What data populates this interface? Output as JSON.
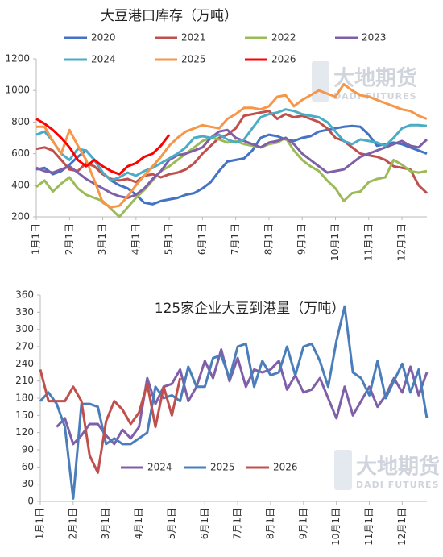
{
  "chart_data": [
    {
      "type": "line",
      "title": "大豆港口库存（万吨）",
      "watermark": {
        "text": "大地期货",
        "subtext": "DADI FUTURES"
      },
      "categories": [
        "1月1日",
        null,
        null,
        null,
        "2月1日",
        null,
        null,
        null,
        "3月1日",
        null,
        null,
        null,
        "4月1日",
        null,
        null,
        null,
        "5月1日",
        null,
        null,
        null,
        "6月1日",
        null,
        null,
        null,
        "7月1日",
        null,
        null,
        null,
        "8月1日",
        null,
        null,
        null,
        "9月1日",
        null,
        null,
        null,
        "10月1日",
        null,
        null,
        null,
        "11月1日",
        null,
        null,
        null,
        "12月1日",
        null,
        null,
        null
      ],
      "ylim": [
        200,
        1200
      ],
      "yticks": [
        200,
        400,
        600,
        800,
        1000,
        1200
      ],
      "grid": false,
      "series": [
        {
          "name": "2020",
          "color": "#4472c4",
          "values": [
            500,
            510,
            470,
            490,
            530,
            580,
            620,
            560,
            480,
            430,
            400,
            380,
            340,
            290,
            280,
            300,
            310,
            320,
            340,
            350,
            380,
            420,
            490,
            550,
            560,
            570,
            620,
            700,
            720,
            710,
            690,
            680,
            700,
            710,
            740,
            750,
            760,
            770,
            775,
            770,
            720,
            650,
            660,
            670,
            660,
            640,
            620,
            600
          ]
        },
        {
          "name": "2021",
          "color": "#c0504d",
          "values": [
            630,
            640,
            620,
            560,
            500,
            490,
            540,
            520,
            470,
            440,
            430,
            440,
            420,
            460,
            470,
            450,
            470,
            480,
            500,
            540,
            600,
            650,
            700,
            720,
            760,
            840,
            850,
            860,
            870,
            820,
            850,
            830,
            840,
            820,
            800,
            760,
            700,
            680,
            640,
            600,
            590,
            580,
            560,
            520,
            510,
            500,
            400,
            350
          ]
        },
        {
          "name": "2022",
          "color": "#9bbb59",
          "values": [
            390,
            430,
            360,
            410,
            450,
            380,
            340,
            320,
            300,
            250,
            200,
            260,
            320,
            370,
            430,
            490,
            520,
            560,
            600,
            640,
            680,
            700,
            690,
            670,
            680,
            660,
            650,
            640,
            660,
            670,
            700,
            620,
            560,
            520,
            490,
            430,
            380,
            300,
            350,
            360,
            420,
            440,
            450,
            560,
            530,
            490,
            480,
            490
          ]
        },
        {
          "name": "2023",
          "color": "#7f5fa8",
          "values": [
            510,
            490,
            480,
            500,
            520,
            480,
            440,
            410,
            380,
            350,
            330,
            320,
            340,
            380,
            440,
            490,
            560,
            590,
            600,
            620,
            640,
            700,
            740,
            750,
            700,
            680,
            660,
            640,
            670,
            680,
            700,
            660,
            600,
            560,
            520,
            480,
            490,
            500,
            540,
            580,
            600,
            620,
            640,
            660,
            680,
            650,
            640,
            690
          ]
        },
        {
          "name": "2024",
          "color": "#4bacc6",
          "values": [
            720,
            740,
            680,
            600,
            560,
            630,
            620,
            560,
            480,
            430,
            450,
            480,
            460,
            490,
            510,
            540,
            570,
            600,
            640,
            700,
            710,
            700,
            720,
            690,
            670,
            690,
            760,
            830,
            850,
            860,
            880,
            870,
            850,
            840,
            830,
            800,
            740,
            680,
            660,
            690,
            680,
            670,
            650,
            700,
            760,
            780,
            780,
            775
          ]
        },
        {
          "name": "2025",
          "color": "#f79646",
          "values": [
            770,
            770,
            680,
            600,
            750,
            650,
            560,
            430,
            290,
            260,
            270,
            330,
            400,
            460,
            520,
            580,
            650,
            700,
            740,
            760,
            780,
            770,
            760,
            820,
            850,
            890,
            890,
            880,
            900,
            960,
            970,
            900,
            940,
            970,
            1000,
            980,
            960,
            1040,
            1000,
            970,
            960,
            940,
            920,
            900,
            880,
            870,
            840,
            820
          ]
        },
        {
          "name": "2026",
          "color": "#ff0000",
          "values": [
            820,
            790,
            750,
            700,
            640,
            560,
            520,
            560,
            520,
            490,
            470,
            520,
            540,
            580,
            600,
            650,
            720,
            null,
            null,
            null,
            null,
            null,
            null,
            null,
            null,
            null,
            null,
            null,
            null,
            null,
            null,
            null,
            null,
            null,
            null,
            null,
            null,
            null,
            null,
            null,
            null,
            null,
            null,
            null,
            null,
            null,
            null,
            null
          ]
        }
      ]
    },
    {
      "type": "line",
      "title": "125家企业大豆到港量（万吨）",
      "watermark": {
        "text": "大地期货",
        "subtext": "DADI FUTURES"
      },
      "categories": [
        "1月1日",
        null,
        null,
        null,
        "2月1日",
        null,
        null,
        null,
        "3月1日",
        null,
        null,
        null,
        "4月1日",
        null,
        null,
        null,
        "5月1日",
        null,
        null,
        null,
        "6月1日",
        null,
        null,
        null,
        "7月1日",
        null,
        null,
        null,
        "8月1日",
        null,
        null,
        null,
        "9月1日",
        null,
        null,
        null,
        "10月1日",
        null,
        null,
        null,
        "11月1日",
        null,
        null,
        null,
        "12月1日",
        null,
        null,
        null
      ],
      "ylim": [
        0,
        360
      ],
      "yticks": [
        0,
        30,
        60,
        90,
        120,
        150,
        180,
        210,
        240,
        270,
        300,
        330,
        360
      ],
      "grid": false,
      "series": [
        {
          "name": "2024",
          "color": "#7f5fa8",
          "values": [
            null,
            null,
            130,
            145,
            100,
            115,
            135,
            135,
            115,
            100,
            125,
            110,
            130,
            215,
            170,
            200,
            205,
            230,
            175,
            200,
            245,
            215,
            265,
            210,
            250,
            200,
            230,
            225,
            230,
            245,
            195,
            220,
            190,
            195,
            215,
            180,
            145,
            200,
            150,
            175,
            200,
            165,
            185,
            215,
            190,
            235,
            185,
            225
          ]
        },
        {
          "name": "2025",
          "color": "#4a7ebb",
          "values": [
            175,
            190,
            170,
            130,
            5,
            170,
            170,
            165,
            100,
            110,
            100,
            100,
            110,
            120,
            200,
            180,
            185,
            175,
            235,
            200,
            200,
            250,
            255,
            215,
            270,
            275,
            200,
            245,
            220,
            225,
            270,
            220,
            270,
            275,
            245,
            200,
            280,
            340,
            225,
            215,
            185,
            245,
            180,
            210,
            240,
            190,
            230,
            145
          ]
        },
        {
          "name": "2026",
          "color": "#c0504d",
          "values": [
            230,
            175,
            175,
            175,
            200,
            175,
            80,
            50,
            140,
            175,
            160,
            135,
            155,
            205,
            130,
            200,
            150,
            215,
            null,
            null,
            null,
            null,
            null,
            null,
            null,
            null,
            null,
            null,
            null,
            null,
            null,
            null,
            null,
            null,
            null,
            null,
            null,
            null,
            null,
            null,
            null,
            null,
            null,
            null,
            null,
            null,
            null,
            null
          ]
        }
      ]
    }
  ]
}
